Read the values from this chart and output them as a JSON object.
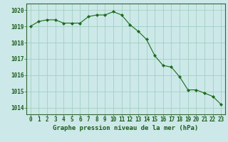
{
  "x": [
    0,
    1,
    2,
    3,
    4,
    5,
    6,
    7,
    8,
    9,
    10,
    11,
    12,
    13,
    14,
    15,
    16,
    17,
    18,
    19,
    20,
    21,
    22,
    23
  ],
  "y": [
    1019.0,
    1019.3,
    1019.4,
    1019.4,
    1019.2,
    1019.2,
    1019.2,
    1019.6,
    1019.7,
    1019.7,
    1019.9,
    1019.7,
    1019.1,
    1018.7,
    1018.2,
    1017.2,
    1016.6,
    1016.5,
    1015.9,
    1015.1,
    1015.1,
    1014.9,
    1014.7,
    1014.2
  ],
  "xlabel": "Graphe pression niveau de la mer (hPa)",
  "xlim_min": -0.5,
  "xlim_max": 23.5,
  "ylim_min": 1013.6,
  "ylim_max": 1020.4,
  "yticks": [
    1014,
    1015,
    1016,
    1017,
    1018,
    1019,
    1020
  ],
  "xticks": [
    0,
    1,
    2,
    3,
    4,
    5,
    6,
    7,
    8,
    9,
    10,
    11,
    12,
    13,
    14,
    15,
    16,
    17,
    18,
    19,
    20,
    21,
    22,
    23
  ],
  "line_color": "#1a6b1a",
  "marker_color": "#1a6b1a",
  "bg_color": "#cce8e8",
  "grid_color": "#99ccbb",
  "label_color": "#1a5c1a",
  "tick_label_color": "#1a5c1a",
  "border_color": "#336633",
  "xlabel_fontsize": 6.5,
  "tick_fontsize": 5.5,
  "ytick_fontsize": 5.5
}
